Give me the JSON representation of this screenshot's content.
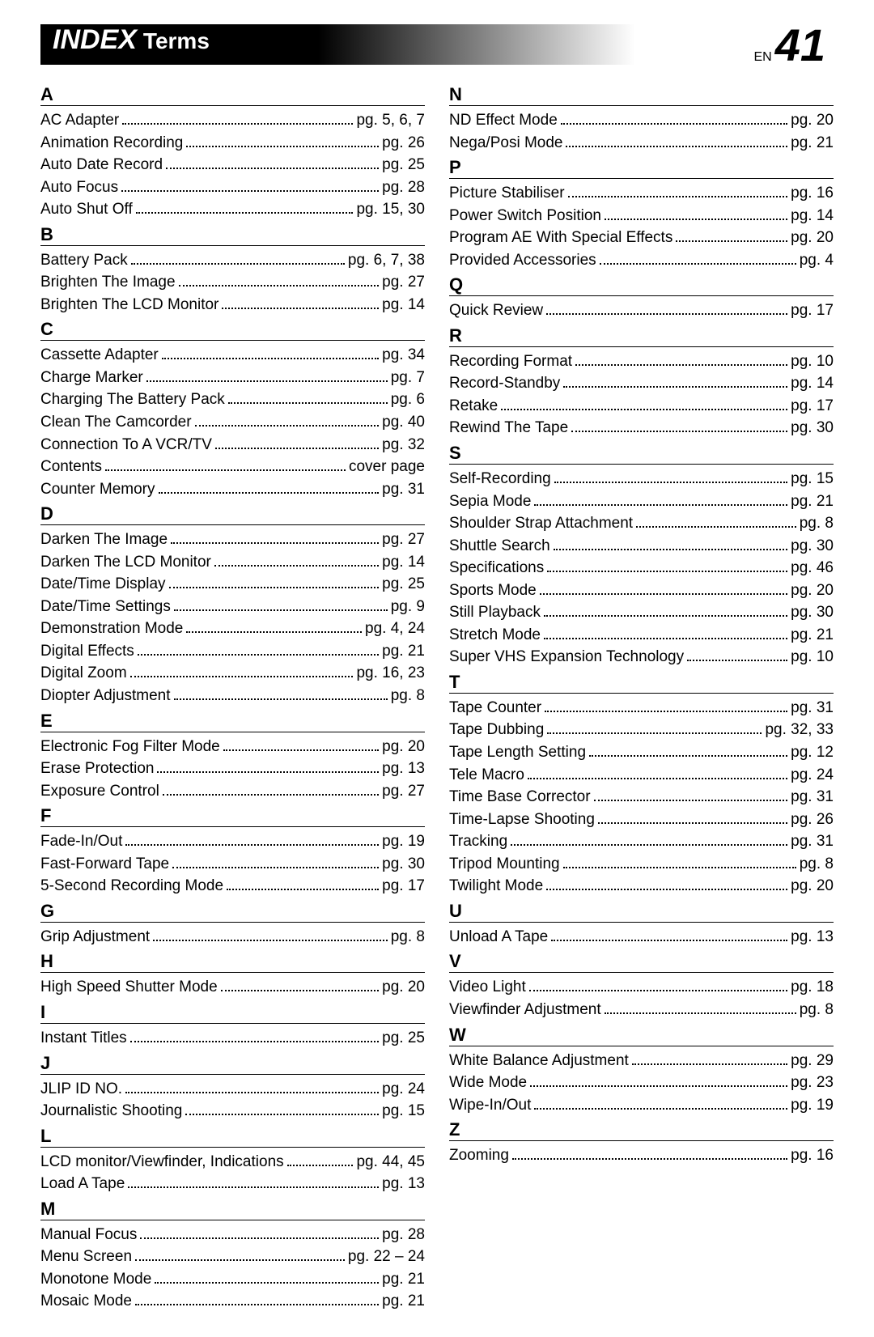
{
  "header": {
    "index": "INDEX",
    "terms": "Terms",
    "en": "EN",
    "pageNum": "41"
  },
  "columns": [
    {
      "sections": [
        {
          "letter": "A",
          "entries": [
            {
              "term": "AC Adapter",
              "page": "pg. 5, 6, 7"
            },
            {
              "term": "Animation Recording",
              "page": "pg. 26"
            },
            {
              "term": "Auto Date Record",
              "page": "pg. 25"
            },
            {
              "term": "Auto Focus",
              "page": "pg. 28"
            },
            {
              "term": "Auto Shut Off",
              "page": "pg. 15, 30"
            }
          ]
        },
        {
          "letter": "B",
          "entries": [
            {
              "term": "Battery Pack",
              "page": "pg. 6, 7, 38"
            },
            {
              "term": "Brighten The Image",
              "page": "pg. 27"
            },
            {
              "term": "Brighten The LCD Monitor",
              "page": "pg. 14"
            }
          ]
        },
        {
          "letter": "C",
          "entries": [
            {
              "term": "Cassette Adapter",
              "page": "pg. 34"
            },
            {
              "term": "Charge Marker",
              "page": "pg. 7"
            },
            {
              "term": "Charging The Battery Pack",
              "page": "pg. 6"
            },
            {
              "term": "Clean The Camcorder",
              "page": "pg. 40"
            },
            {
              "term": "Connection To A VCR/TV",
              "page": "pg. 32"
            },
            {
              "term": "Contents",
              "page": "cover page"
            },
            {
              "term": "Counter Memory",
              "page": "pg. 31"
            }
          ]
        },
        {
          "letter": "D",
          "entries": [
            {
              "term": "Darken The Image",
              "page": "pg. 27"
            },
            {
              "term": "Darken The LCD Monitor",
              "page": "pg. 14"
            },
            {
              "term": "Date/Time Display",
              "page": "pg. 25"
            },
            {
              "term": "Date/Time Settings",
              "page": "pg. 9"
            },
            {
              "term": "Demonstration Mode",
              "page": "pg. 4, 24"
            },
            {
              "term": "Digital Effects",
              "page": "pg. 21"
            },
            {
              "term": "Digital Zoom",
              "page": "pg. 16, 23"
            },
            {
              "term": "Diopter Adjustment",
              "page": "pg. 8"
            }
          ]
        },
        {
          "letter": "E",
          "entries": [
            {
              "term": "Electronic Fog Filter Mode",
              "page": "pg. 20"
            },
            {
              "term": "Erase Protection",
              "page": "pg. 13"
            },
            {
              "term": "Exposure Control",
              "page": "pg. 27"
            }
          ]
        },
        {
          "letter": "F",
          "entries": [
            {
              "term": "Fade-In/Out",
              "page": "pg. 19"
            },
            {
              "term": "Fast-Forward Tape",
              "page": "pg. 30"
            },
            {
              "term": "5-Second Recording Mode",
              "page": "pg. 17"
            }
          ]
        },
        {
          "letter": "G",
          "entries": [
            {
              "term": "Grip Adjustment",
              "page": "pg. 8"
            }
          ]
        },
        {
          "letter": "H",
          "entries": [
            {
              "term": "High Speed Shutter Mode",
              "page": "pg. 20"
            }
          ]
        },
        {
          "letter": "I",
          "entries": [
            {
              "term": "Instant Titles",
              "page": "pg. 25"
            }
          ]
        },
        {
          "letter": "J",
          "entries": [
            {
              "term": "JLIP ID NO.",
              "page": "pg. 24"
            },
            {
              "term": "Journalistic Shooting",
              "page": "pg. 15"
            }
          ]
        },
        {
          "letter": "L",
          "entries": [
            {
              "term": "LCD monitor/Viewfinder, Indications",
              "page": "pg. 44, 45"
            },
            {
              "term": "Load A Tape",
              "page": "pg. 13"
            }
          ]
        },
        {
          "letter": "M",
          "entries": [
            {
              "term": "Manual Focus",
              "page": "pg. 28"
            },
            {
              "term": "Menu Screen",
              "page": "pg. 22 – 24"
            },
            {
              "term": "Monotone Mode",
              "page": "pg. 21"
            },
            {
              "term": "Mosaic Mode",
              "page": "pg. 21"
            }
          ]
        }
      ]
    },
    {
      "sections": [
        {
          "letter": "N",
          "entries": [
            {
              "term": "ND Effect Mode",
              "page": "pg. 20"
            },
            {
              "term": "Nega/Posi Mode",
              "page": "pg. 21"
            }
          ]
        },
        {
          "letter": "P",
          "entries": [
            {
              "term": "Picture Stabiliser",
              "page": "pg. 16"
            },
            {
              "term": "Power Switch Position",
              "page": "pg. 14"
            },
            {
              "term": "Program AE With Special Effects",
              "page": "pg. 20"
            },
            {
              "term": "Provided Accessories",
              "page": "pg. 4"
            }
          ]
        },
        {
          "letter": "Q",
          "entries": [
            {
              "term": "Quick Review",
              "page": "pg. 17"
            }
          ]
        },
        {
          "letter": "R",
          "entries": [
            {
              "term": "Recording Format",
              "page": "pg. 10"
            },
            {
              "term": "Record-Standby",
              "page": "pg. 14"
            },
            {
              "term": "Retake",
              "page": "pg. 17"
            },
            {
              "term": "Rewind The Tape",
              "page": "pg. 30"
            }
          ]
        },
        {
          "letter": "S",
          "entries": [
            {
              "term": "Self-Recording",
              "page": "pg. 15"
            },
            {
              "term": "Sepia Mode",
              "page": "pg. 21"
            },
            {
              "term": "Shoulder Strap Attachment",
              "page": "pg. 8"
            },
            {
              "term": "Shuttle Search",
              "page": "pg. 30"
            },
            {
              "term": "Specifications",
              "page": "pg. 46"
            },
            {
              "term": "Sports Mode",
              "page": "pg. 20"
            },
            {
              "term": "Still Playback",
              "page": "pg. 30"
            },
            {
              "term": "Stretch Mode",
              "page": "pg. 21"
            },
            {
              "term": "Super VHS Expansion Technology",
              "page": "pg. 10"
            }
          ]
        },
        {
          "letter": "T",
          "entries": [
            {
              "term": "Tape Counter",
              "page": "pg. 31"
            },
            {
              "term": "Tape Dubbing",
              "page": "pg. 32, 33"
            },
            {
              "term": "Tape Length Setting",
              "page": "pg. 12"
            },
            {
              "term": "Tele Macro",
              "page": "pg. 24"
            },
            {
              "term": "Time Base Corrector",
              "page": "pg. 31"
            },
            {
              "term": "Time-Lapse Shooting",
              "page": "pg. 26"
            },
            {
              "term": "Tracking",
              "page": "pg. 31"
            },
            {
              "term": "Tripod Mounting",
              "page": "pg. 8"
            },
            {
              "term": "Twilight Mode",
              "page": "pg. 20"
            }
          ]
        },
        {
          "letter": "U",
          "entries": [
            {
              "term": "Unload A Tape",
              "page": "pg. 13"
            }
          ]
        },
        {
          "letter": "V",
          "entries": [
            {
              "term": "Video Light",
              "page": "pg. 18"
            },
            {
              "term": "Viewfinder Adjustment",
              "page": "pg. 8"
            }
          ]
        },
        {
          "letter": "W",
          "entries": [
            {
              "term": "White Balance Adjustment",
              "page": "pg. 29"
            },
            {
              "term": "Wide Mode",
              "page": "pg. 23"
            },
            {
              "term": "Wipe-In/Out",
              "page": "pg. 19"
            }
          ]
        },
        {
          "letter": "Z",
          "entries": [
            {
              "term": "Zooming",
              "page": "pg. 16"
            }
          ]
        }
      ]
    }
  ]
}
